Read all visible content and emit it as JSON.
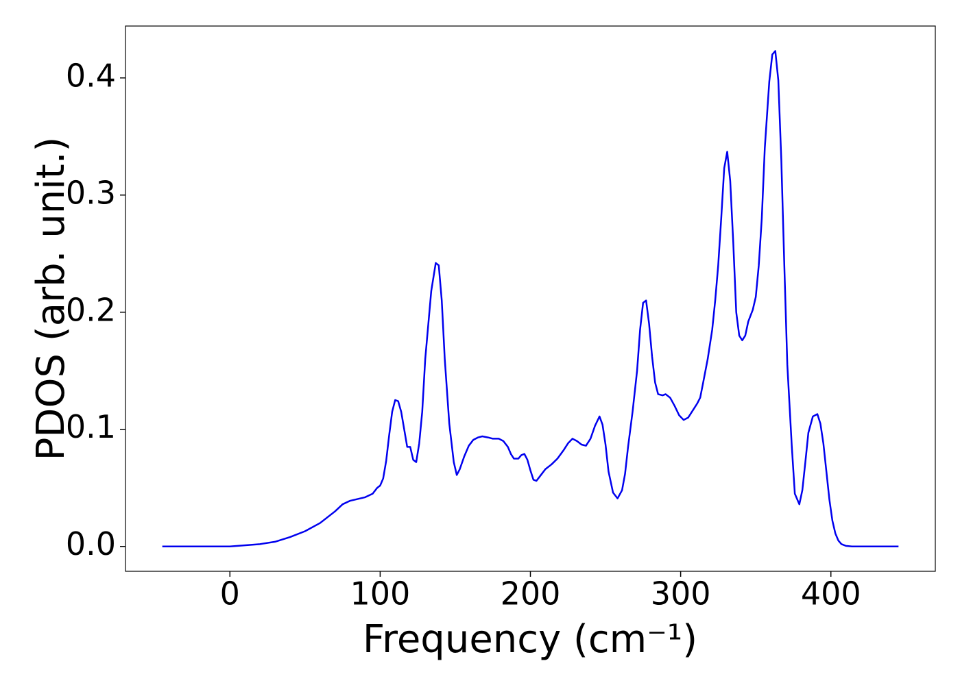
{
  "chart_data": {
    "type": "line",
    "xlabel": "Frequency (cm⁻¹)",
    "ylabel": "PDOS (arb. unit.)",
    "xlim": [
      -69.5,
      469.5
    ],
    "ylim": [
      -0.0212,
      0.4443
    ],
    "xticks": [
      0,
      100,
      200,
      300,
      400
    ],
    "yticks": [
      {
        "value": 0,
        "label": "0.0"
      },
      {
        "value": 0.1,
        "label": "0.1"
      },
      {
        "value": 0.2,
        "label": "0.2"
      },
      {
        "value": 0.3,
        "label": "0.3"
      },
      {
        "value": 0.4,
        "label": "0.4"
      }
    ],
    "grid": false,
    "series": [
      {
        "color": "#0000ee",
        "x": [
          -45,
          0,
          20,
          30,
          40,
          50,
          60,
          70,
          75,
          80,
          90,
          95,
          98,
          100,
          102,
          104,
          106,
          108,
          110,
          112,
          114,
          116,
          118,
          120,
          122,
          124,
          126,
          128,
          130,
          134,
          137,
          139,
          141,
          143,
          146,
          149,
          151,
          153,
          156,
          159,
          162,
          165,
          168,
          172,
          175,
          179,
          182,
          185,
          187,
          189,
          192,
          194,
          196,
          198,
          200,
          202,
          204,
          207,
          210,
          214,
          218,
          222,
          225,
          228,
          231,
          234,
          237,
          240,
          243,
          246,
          248,
          250,
          252,
          255,
          258,
          261,
          263,
          265,
          268,
          271,
          273,
          275,
          277,
          279,
          281,
          283,
          285,
          288,
          290,
          293,
          296,
          299,
          302,
          305,
          308,
          311,
          313,
          315,
          318,
          321,
          323,
          325,
          327,
          329,
          331,
          333,
          335,
          337,
          339,
          341,
          343,
          345,
          348,
          350,
          352,
          354,
          356,
          359,
          361,
          363,
          365,
          367,
          369,
          371,
          374,
          376,
          379,
          381,
          383,
          385,
          388,
          391,
          393,
          395,
          397,
          399,
          401,
          403,
          405,
          407,
          410,
          414,
          445
        ],
        "values": [
          0,
          0,
          0.002,
          0.004,
          0.008,
          0.013,
          0.02,
          0.03,
          0.036,
          0.039,
          0.042,
          0.045,
          0.05,
          0.052,
          0.058,
          0.073,
          0.095,
          0.115,
          0.125,
          0.124,
          0.115,
          0.1,
          0.085,
          0.085,
          0.074,
          0.072,
          0.088,
          0.115,
          0.16,
          0.218,
          0.242,
          0.24,
          0.21,
          0.16,
          0.105,
          0.072,
          0.061,
          0.066,
          0.077,
          0.086,
          0.091,
          0.093,
          0.094,
          0.093,
          0.092,
          0.092,
          0.09,
          0.085,
          0.079,
          0.075,
          0.075,
          0.078,
          0.079,
          0.074,
          0.065,
          0.057,
          0.056,
          0.061,
          0.066,
          0.07,
          0.075,
          0.082,
          0.088,
          0.092,
          0.09,
          0.087,
          0.086,
          0.092,
          0.103,
          0.111,
          0.104,
          0.087,
          0.064,
          0.046,
          0.041,
          0.048,
          0.062,
          0.085,
          0.115,
          0.15,
          0.185,
          0.208,
          0.21,
          0.19,
          0.162,
          0.14,
          0.13,
          0.129,
          0.13,
          0.127,
          0.12,
          0.112,
          0.108,
          0.11,
          0.116,
          0.122,
          0.127,
          0.14,
          0.16,
          0.185,
          0.21,
          0.24,
          0.28,
          0.323,
          0.337,
          0.312,
          0.26,
          0.2,
          0.18,
          0.176,
          0.18,
          0.192,
          0.202,
          0.213,
          0.24,
          0.28,
          0.34,
          0.397,
          0.42,
          0.423,
          0.398,
          0.33,
          0.24,
          0.155,
          0.085,
          0.045,
          0.036,
          0.048,
          0.072,
          0.097,
          0.111,
          0.113,
          0.105,
          0.088,
          0.064,
          0.04,
          0.022,
          0.011,
          0.005,
          0.002,
          0.0005,
          0,
          0
        ]
      }
    ]
  }
}
